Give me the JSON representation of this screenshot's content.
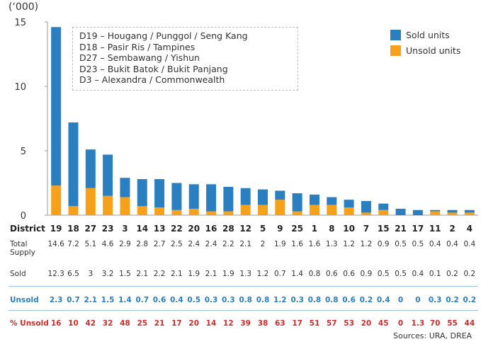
{
  "chart_data": {
    "type": "bar",
    "stacked": true,
    "y_unit_label": "(‘000)",
    "ylim": [
      0,
      15
    ],
    "yticks": [
      0,
      5,
      10,
      15
    ],
    "grid": false,
    "legend_position": "top-right",
    "categories": [
      "19",
      "18",
      "27",
      "23",
      "3",
      "14",
      "13",
      "22",
      "20",
      "16",
      "28",
      "12",
      "5",
      "9",
      "25",
      "1",
      "8",
      "10",
      "7",
      "15",
      "21",
      "17",
      "11",
      "2",
      "4"
    ],
    "series": [
      {
        "name": "Sold units",
        "color": "#2a7fc0",
        "values": [
          12.3,
          6.5,
          3,
          3.2,
          1.5,
          2.1,
          2.2,
          2.1,
          1.9,
          2.1,
          1.9,
          1.3,
          1.2,
          0.7,
          1.4,
          0.8,
          0.6,
          0.6,
          0.9,
          0.5,
          0.5,
          0.4,
          0.1,
          0.2,
          0.2
        ]
      },
      {
        "name": "Unsold units",
        "color": "#f7a11a",
        "values": [
          2.3,
          0.7,
          2.1,
          1.5,
          1.4,
          0.7,
          0.6,
          0.4,
          0.5,
          0.3,
          0.3,
          0.8,
          0.8,
          1.2,
          0.3,
          0.8,
          0.8,
          0.6,
          0.2,
          0.4,
          0,
          0,
          0.3,
          0.2,
          0.2
        ]
      }
    ],
    "district_notes": [
      "D19 – Hougang / Punggol / Seng Kang",
      "D18 – Pasir Ris / Tampines",
      "D27 – Sembawang / Yishun",
      "D23 – Bukit Batok / Bukit Panjang",
      "D3 – Alexandra / Commonwealth"
    ],
    "table": {
      "header_label": "District",
      "rows": [
        {
          "label": "Total Supply",
          "values": [
            "14.6",
            "7.2",
            "5.1",
            "4.6",
            "2.9",
            "2.8",
            "2.7",
            "2.5",
            "2.4",
            "2.4",
            "2.2",
            "2.1",
            "2",
            "1.9",
            "1.6",
            "1.6",
            "1.3",
            "1.2",
            "1.2",
            "0.9",
            "0.5",
            "0.5",
            "0.4",
            "0.4",
            "0.4"
          ]
        },
        {
          "label": "Sold",
          "values": [
            "12.3",
            "6.5",
            "3",
            "3.2",
            "1.5",
            "2.1",
            "2.2",
            "2.1",
            "1.9",
            "2.1",
            "1.9",
            "1.3",
            "1.2",
            "0.7",
            "1.4",
            "0.8",
            "0.6",
            "0.6",
            "0.9",
            "0.5",
            "0.5",
            "0.4",
            "0.1",
            "0.2",
            "0.2"
          ]
        },
        {
          "label": "Unsold",
          "values": [
            "2.3",
            "0.7",
            "2.1",
            "1.5",
            "1.4",
            "0.7",
            "0.6",
            "0.4",
            "0.5",
            "0.3",
            "0.3",
            "0.8",
            "0.8",
            "1.2",
            "0.3",
            "0.8",
            "0.8",
            "0.6",
            "0.2",
            "0.4",
            "0",
            "0",
            "0.3",
            "0.2",
            "0.2"
          ]
        },
        {
          "label": "% Unsold",
          "values": [
            "16",
            "10",
            "42",
            "32",
            "48",
            "25",
            "21",
            "17",
            "20",
            "14",
            "12",
            "39",
            "38",
            "63",
            "17",
            "51",
            "57",
            "53",
            "20",
            "45",
            "0",
            "1.3",
            "70",
            "55",
            "44"
          ]
        }
      ]
    },
    "source": "Sources: URA, DREA"
  }
}
